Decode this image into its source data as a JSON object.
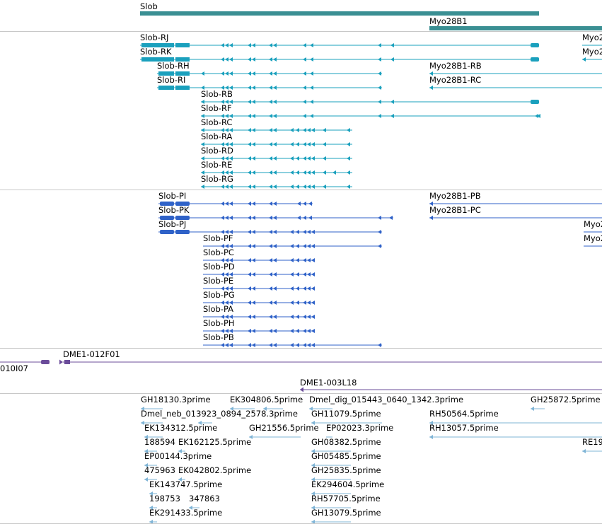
{
  "colors": {
    "gene": "#3a8f93",
    "rna": "#1aa0bd",
    "protein": "#2f62c8",
    "clone": "#6b4c9a",
    "est": "#7fb4d6",
    "separator": "#c8c8c8"
  },
  "tracks": {
    "gene": {
      "labels": [
        "Slob",
        "Myo28B1"
      ]
    },
    "transcripts": {
      "labels": [
        "Slob-RJ",
        "Myo2",
        "Slob-RK",
        "Myo2",
        "Slob-RH",
        "Myo28B1-RB",
        "Slob-RI",
        "Myo28B1-RC",
        "Slob-RB",
        "Slob-RF",
        "Slob-RC",
        "Slob-RA",
        "Slob-RD",
        "Slob-RE",
        "Slob-RG"
      ]
    },
    "proteins": {
      "labels": [
        "Slob-PI",
        "Myo28B1-PB",
        "Slob-PK",
        "Myo28B1-PC",
        "Slob-PJ",
        "Myo2",
        "Slob-PF",
        "Myo2",
        "Slob-PC",
        "Slob-PD",
        "Slob-PE",
        "Slob-PG",
        "Slob-PA",
        "Slob-PH",
        "Slob-PB"
      ]
    },
    "clones": {
      "labels": [
        "DME1-012F01",
        "010I07",
        "DME1-003L18"
      ]
    },
    "ests": {
      "labels": [
        "GH18130.3prime",
        "EK304806.5prime",
        "Dmel_dig_015443_0640_1342.3prime",
        "GH25872.5prime",
        "Dmel_neb_013923_0894_2578.3prime",
        "GH11079.5prime",
        "RH50564.5prime",
        "EK134312.5prime",
        "GH21556.5prime",
        "EP02023.3prime",
        "RH13057.5prime",
        "188594",
        "EK162125.5prime",
        "GH08382.5prime",
        "RE19",
        "EP00144.3prime",
        "GH05485.5prime",
        "475963",
        "EK042802.5prime",
        "GH25835.5prime",
        "EK143747.5prime",
        "EK294604.5prime",
        "198753",
        "347863",
        "RH57705.5prime",
        "EK291433.5prime",
        "GH13079.5prime"
      ]
    }
  }
}
